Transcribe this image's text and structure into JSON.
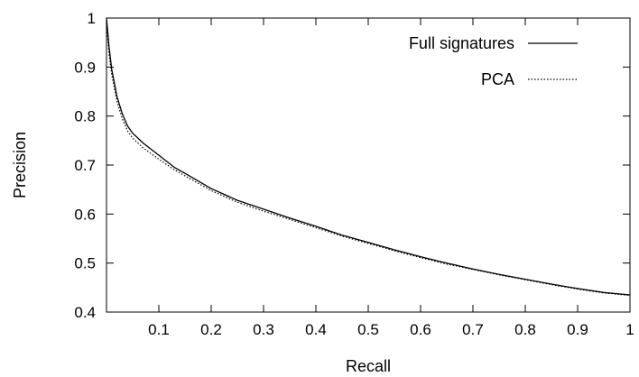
{
  "chart_data": {
    "type": "line",
    "title": "",
    "xlabel": "Recall",
    "ylabel": "Precision",
    "xlim": [
      0,
      1
    ],
    "ylim": [
      0.4,
      1
    ],
    "grid": false,
    "legend": "top-right",
    "x_ticks": [
      0.1,
      0.2,
      0.3,
      0.4,
      0.5,
      0.6,
      0.7,
      0.8,
      0.9,
      1
    ],
    "x_tick_labels": [
      "0.1",
      "0.2",
      "0.3",
      "0.4",
      "0.5",
      "0.6",
      "0.7",
      "0.8",
      "0.9",
      "1"
    ],
    "y_ticks": [
      0.4,
      0.5,
      0.6,
      0.7,
      0.8,
      0.9,
      1
    ],
    "y_tick_labels": [
      "0.4",
      "0.5",
      "0.6",
      "0.7",
      "0.8",
      "0.9",
      "1"
    ],
    "series": [
      {
        "name": "Full signatures",
        "style": "solid",
        "color": "#000000",
        "x": [
          0.0,
          0.005,
          0.01,
          0.02,
          0.03,
          0.04,
          0.05,
          0.07,
          0.1,
          0.13,
          0.15,
          0.2,
          0.25,
          0.3,
          0.35,
          0.4,
          0.45,
          0.5,
          0.55,
          0.6,
          0.65,
          0.7,
          0.75,
          0.8,
          0.85,
          0.9,
          0.95,
          1.0
        ],
        "y": [
          1.0,
          0.94,
          0.895,
          0.84,
          0.805,
          0.78,
          0.765,
          0.745,
          0.72,
          0.695,
          0.683,
          0.652,
          0.628,
          0.61,
          0.592,
          0.575,
          0.557,
          0.542,
          0.527,
          0.513,
          0.5,
          0.488,
          0.477,
          0.467,
          0.457,
          0.448,
          0.44,
          0.435
        ]
      },
      {
        "name": "PCA",
        "style": "dotted",
        "color": "#000000",
        "x": [
          0.0,
          0.005,
          0.01,
          0.02,
          0.03,
          0.04,
          0.05,
          0.07,
          0.1,
          0.13,
          0.15,
          0.2,
          0.25,
          0.3,
          0.35,
          0.4,
          0.45,
          0.5,
          0.55,
          0.6,
          0.65,
          0.7,
          0.75,
          0.8,
          0.85,
          0.9,
          0.95,
          1.0
        ],
        "y": [
          0.99,
          0.925,
          0.885,
          0.83,
          0.795,
          0.77,
          0.755,
          0.735,
          0.712,
          0.69,
          0.678,
          0.648,
          0.624,
          0.606,
          0.589,
          0.572,
          0.555,
          0.54,
          0.525,
          0.511,
          0.498,
          0.487,
          0.476,
          0.466,
          0.456,
          0.447,
          0.439,
          0.434
        ]
      }
    ]
  }
}
